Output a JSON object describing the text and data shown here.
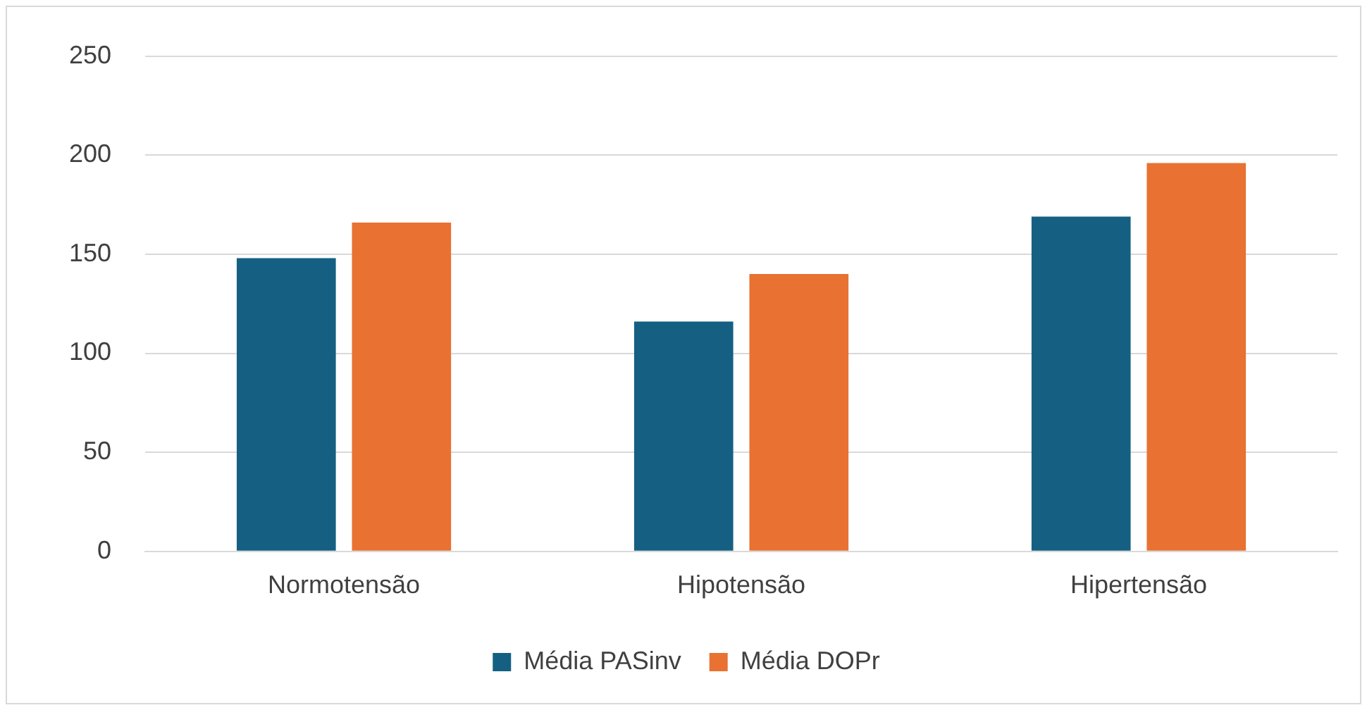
{
  "chart_data": {
    "type": "bar",
    "categories": [
      "Normotensão",
      "Hipotensão",
      "Hipertensão"
    ],
    "series": [
      {
        "name": "Média PASinv",
        "color": "#156082",
        "values": [
          148,
          116,
          169
        ]
      },
      {
        "name": "Média DOPr",
        "color": "#e97132",
        "values": [
          166,
          140,
          196
        ]
      }
    ],
    "ylim": [
      0,
      250
    ],
    "yticks": [
      0,
      50,
      100,
      150,
      200,
      250
    ],
    "grid": "y",
    "legend": "bottom"
  }
}
